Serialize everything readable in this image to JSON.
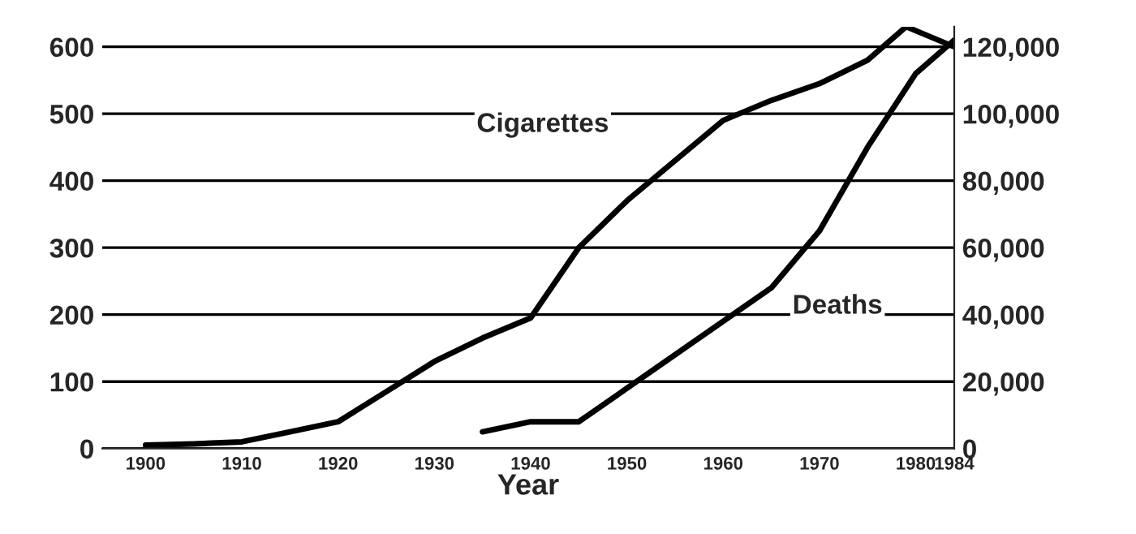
{
  "chart_data": {
    "type": "line",
    "xlabel": "Year",
    "xlim": [
      1895.5,
      1984
    ],
    "xticks": [
      1900,
      1910,
      1920,
      1930,
      1940,
      1950,
      1960,
      1970,
      1980,
      1984
    ],
    "ylim": [
      0,
      630
    ],
    "yticks": [
      0,
      100,
      200,
      300,
      400,
      500,
      600
    ],
    "y2lim": [
      0,
      126000
    ],
    "y2ticks": [
      0,
      {
        "value": 20000,
        "label": "20,000"
      },
      {
        "value": 40000,
        "label": "40,000"
      },
      {
        "value": 60000,
        "label": "60,000"
      },
      {
        "value": 80000,
        "label": "80,000"
      },
      {
        "value": 100000,
        "label": "100,000"
      },
      {
        "value": 120000,
        "label": "120,000"
      }
    ],
    "grid": "y",
    "marker": "none",
    "line_style": "solid",
    "series": [
      {
        "name": "Cigarettes",
        "color": "#000000",
        "x": [
          1900,
          1905,
          1910,
          1915,
          1920,
          1925,
          1930,
          1935,
          1940,
          1945,
          1950,
          1955,
          1960,
          1965,
          1970,
          1975,
          1979,
          1984
        ],
        "values": [
          5,
          7,
          10,
          25,
          40,
          85,
          130,
          165,
          195,
          300,
          370,
          430,
          490,
          520,
          545,
          580,
          630,
          600
        ]
      },
      {
        "name": "Deaths",
        "color": "#000000",
        "axis": "y2",
        "x": [
          1935,
          1940,
          1945,
          1950,
          1955,
          1960,
          1965,
          1970,
          1975,
          1980,
          1984
        ],
        "values": [
          5000,
          8000,
          8000,
          18000,
          28000,
          38000,
          48000,
          65000,
          90000,
          112000,
          122000
        ]
      }
    ]
  }
}
